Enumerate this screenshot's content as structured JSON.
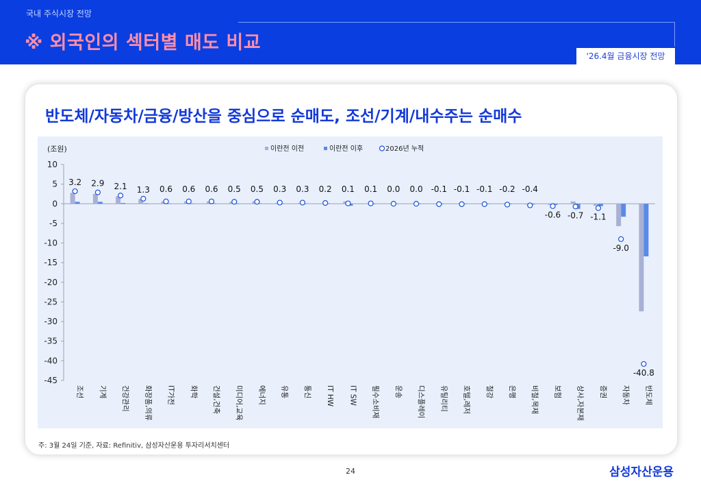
{
  "header": {
    "section": "국내 주식시장 전망",
    "title": "※ 외국인의 섹터별 매도 비교",
    "badge": "'26.4월 금융시장 전망"
  },
  "card_title": "반도체/자동차/금융/방산을 중심으로 순매도, 조선/기계/내수주는 순매수",
  "footer": {
    "note": "주: 3월 24일 기준, 자료: Refinitiv, 삼성자산운용 투자리서치센터",
    "page_number": "24",
    "brand": "삼성자산운용"
  },
  "colors": {
    "before": "#a9b0d6",
    "after": "#5b8ae6",
    "cumulative_marker": "#1a4fd6",
    "header_bg": "#0a3ee0",
    "title_pink": "#ff8ea8",
    "title_blue": "#1239d8"
  },
  "chart_data": {
    "type": "bar",
    "unit_label": "(조원)",
    "ylim": [
      -45,
      10
    ],
    "yticks": [
      10,
      5,
      0,
      -5,
      -10,
      -15,
      -20,
      -25,
      -30,
      -35,
      -40,
      -45
    ],
    "legend_position": "top",
    "grid": false,
    "categories": [
      "조선",
      "기계",
      "건강관리",
      "화장품,의류",
      "IT가전",
      "화학",
      "건설,건축",
      "미디어,교육",
      "에너지",
      "유통",
      "통신",
      "IT HW",
      "IT SW",
      "필수소비재",
      "운송",
      "디스플레이",
      "유틸리티",
      "호텔,레저",
      "철강",
      "은행",
      "비철,목재",
      "보험",
      "상사,자본재",
      "증권",
      "자동차",
      "반도체"
    ],
    "series": [
      {
        "name": "이란전 이전",
        "type": "bar",
        "values": [
          2.8,
          2.5,
          1.9,
          1.2,
          0.6,
          0.6,
          0.6,
          0.5,
          0.6,
          0.2,
          0.2,
          0.1,
          0.6,
          0.1,
          0.0,
          0.0,
          -0.1,
          -0.1,
          -0.1,
          -0.1,
          -0.2,
          -0.3,
          0.6,
          -0.5,
          -5.7,
          -27.4
        ]
      },
      {
        "name": "이란전 이후",
        "type": "bar",
        "values": [
          0.5,
          0.5,
          0.2,
          0.1,
          0.1,
          0.1,
          0.1,
          0.0,
          0.1,
          0.1,
          0.1,
          0.1,
          -0.5,
          0.0,
          0.0,
          0.0,
          -0.1,
          -0.1,
          -0.1,
          -0.1,
          -0.2,
          -0.3,
          -1.3,
          -0.6,
          -3.3,
          -13.4
        ]
      },
      {
        "name": "2026년 누적",
        "type": "marker",
        "values": [
          3.2,
          2.9,
          2.1,
          1.3,
          0.6,
          0.6,
          0.6,
          0.5,
          0.5,
          0.3,
          0.3,
          0.2,
          0.1,
          0.1,
          0.0,
          0.0,
          -0.1,
          -0.1,
          -0.1,
          -0.2,
          -0.4,
          -0.6,
          -0.7,
          -1.1,
          -9.0,
          -40.8
        ]
      }
    ],
    "data_labels": [
      "3.2",
      "2.9",
      "2.1",
      "1.3",
      "0.6",
      "0.6",
      "0.6",
      "0.5",
      "0.5",
      "0.3",
      "0.3",
      "0.2",
      "0.1",
      "0.1",
      "0.0",
      "0.0",
      "-0.1",
      "-0.1",
      "-0.1",
      "-0.2",
      "-0.4",
      "-0.6",
      "-0.7",
      "-1.1",
      "-9.0",
      "-40.8"
    ]
  }
}
